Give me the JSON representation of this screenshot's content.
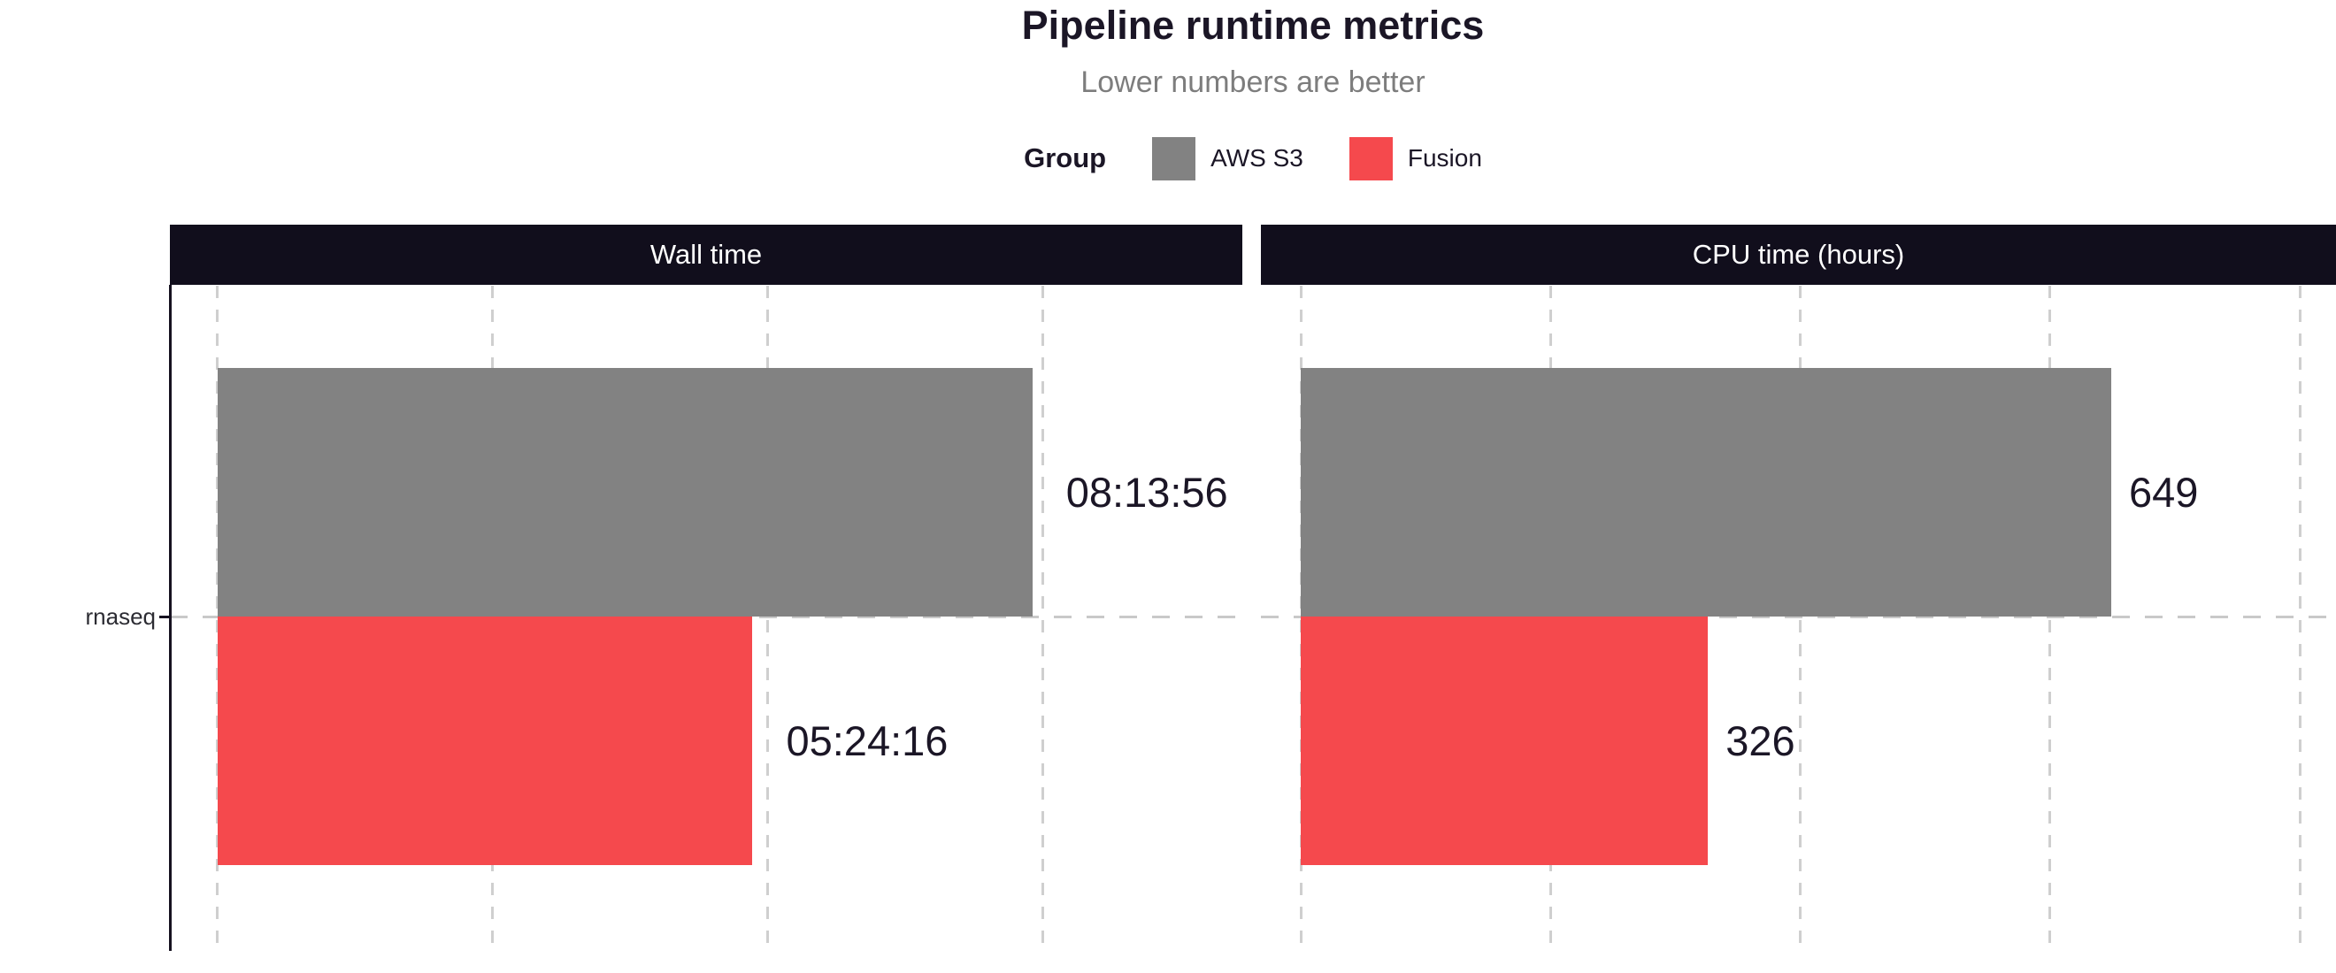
{
  "header": {
    "title": "Pipeline runtime metrics",
    "subtitle": "Lower numbers are better",
    "legend": {
      "title": "Group",
      "items": [
        {
          "label": "AWS S3",
          "color": "#828282"
        },
        {
          "label": "Fusion",
          "color": "#f5494d"
        }
      ]
    }
  },
  "chart_data": {
    "type": "bar",
    "orientation": "horizontal",
    "grid": "dashed-vertical",
    "legend_position": "top-center",
    "category": "rnaseq",
    "groups": [
      "AWS S3",
      "Fusion"
    ],
    "colors": {
      "AWS S3": "#828282",
      "Fusion": "#f5494d"
    },
    "panels": [
      {
        "facet_label": "Wall time",
        "unit": "seconds",
        "x_range": [
          -1738,
          37272
        ],
        "gridlines": [
          0,
          10000,
          20000,
          30000
        ],
        "bars": [
          {
            "group": "AWS S3",
            "value": 29636,
            "label": "08:13:56"
          },
          {
            "group": "Fusion",
            "value": 19456,
            "label": "05:24:16"
          }
        ]
      },
      {
        "facet_label": "CPU time (hours)",
        "unit": "hours",
        "x_range": [
          -32,
          829
        ],
        "gridlines": [
          0,
          200,
          400,
          600,
          800
        ],
        "bars": [
          {
            "group": "AWS S3",
            "value": 649,
            "label": "649"
          },
          {
            "group": "Fusion",
            "value": 326,
            "label": "326"
          }
        ]
      }
    ]
  },
  "theme": {
    "strip_background": "#110e1c",
    "strip_text": "#ffffff",
    "title_color": "#1b1626",
    "subtitle_color": "#7d7d7d",
    "gridline_color": "#cfcfcf",
    "axis_line_color": "#161120",
    "bar_label_color": "#1b1626",
    "background": "#ffffff"
  }
}
